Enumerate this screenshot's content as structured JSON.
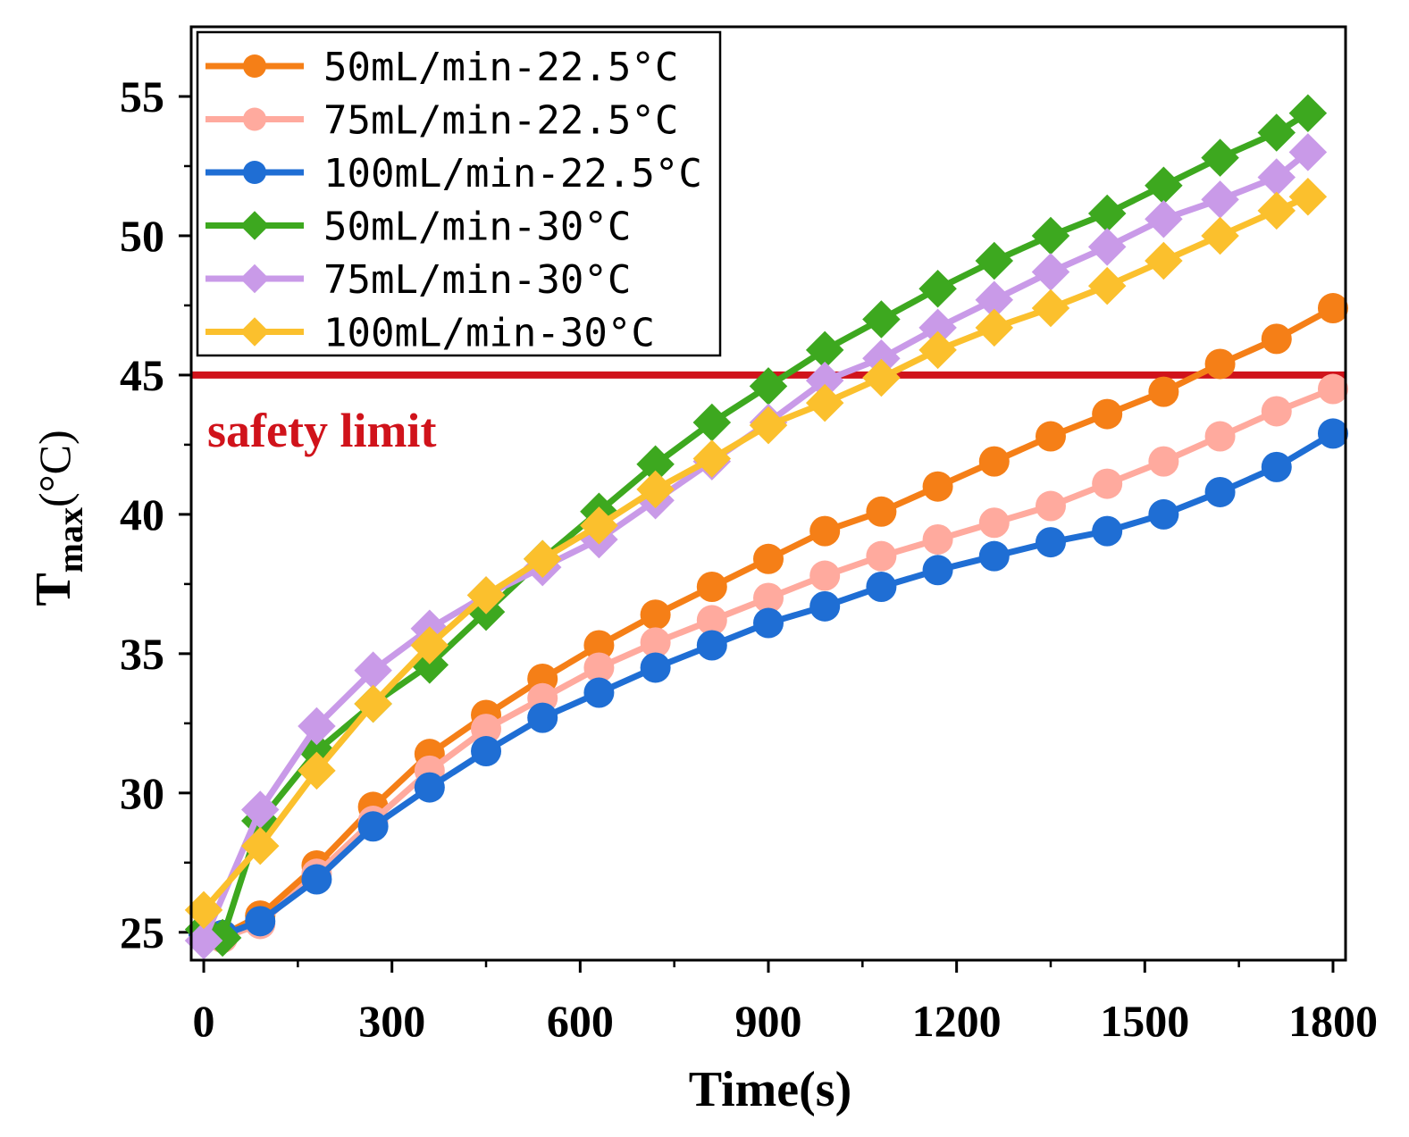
{
  "chart_data": {
    "type": "line",
    "title": "",
    "xlabel": "Time(s)",
    "ylabel": "T",
    "ylabel_sub": "max",
    "ylabel_unit": "(°C)",
    "xlim": [
      -20,
      1820
    ],
    "ylim": [
      24,
      57.5
    ],
    "xticks": [
      0,
      300,
      600,
      900,
      1200,
      1500,
      1800
    ],
    "yticks": [
      25,
      30,
      35,
      40,
      45,
      50,
      55
    ],
    "xtick_labels": [
      "0",
      "300",
      "600",
      "900",
      "1200",
      "1500",
      "1800"
    ],
    "ytick_labels": [
      "25",
      "30",
      "35",
      "40",
      "45",
      "50",
      "55"
    ],
    "grid": false,
    "legend_position": "top-left",
    "safety_limit": {
      "value": 45,
      "label": "safety limit",
      "color": "#d0131b"
    },
    "series": [
      {
        "name": "50mL/min-22.5°C",
        "color": "#f57f17",
        "marker": "circle",
        "x": [
          0,
          30,
          90,
          180,
          270,
          360,
          450,
          540,
          630,
          720,
          810,
          900,
          990,
          1080,
          1170,
          1260,
          1350,
          1440,
          1530,
          1620,
          1710,
          1800
        ],
        "values": [
          25.0,
          24.9,
          25.6,
          27.4,
          29.5,
          31.4,
          32.8,
          34.1,
          35.3,
          36.4,
          37.4,
          38.4,
          39.4,
          40.1,
          41.0,
          41.9,
          42.8,
          43.6,
          44.4,
          45.4,
          46.3,
          47.4
        ]
      },
      {
        "name": "75mL/min-22.5°C",
        "color": "#ffaa9e",
        "marker": "circle",
        "x": [
          0,
          30,
          90,
          180,
          270,
          360,
          450,
          540,
          630,
          720,
          810,
          900,
          990,
          1080,
          1170,
          1260,
          1350,
          1440,
          1530,
          1620,
          1710,
          1800
        ],
        "values": [
          25.0,
          24.8,
          25.3,
          27.1,
          29.0,
          30.8,
          32.3,
          33.4,
          34.5,
          35.4,
          36.2,
          37.0,
          37.8,
          38.5,
          39.1,
          39.7,
          40.3,
          41.1,
          41.9,
          42.8,
          43.7,
          44.5
        ]
      },
      {
        "name": "100mL/min-22.5°C",
        "color": "#1f6ed4",
        "marker": "circle",
        "x": [
          0,
          30,
          90,
          180,
          270,
          360,
          450,
          540,
          630,
          720,
          810,
          900,
          990,
          1080,
          1170,
          1260,
          1350,
          1440,
          1530,
          1620,
          1710,
          1800
        ],
        "values": [
          24.9,
          24.9,
          25.4,
          26.9,
          28.8,
          30.2,
          31.5,
          32.7,
          33.6,
          34.5,
          35.3,
          36.1,
          36.7,
          37.4,
          38.0,
          38.5,
          39.0,
          39.4,
          40.0,
          40.8,
          41.7,
          42.9
        ]
      },
      {
        "name": "50mL/min-30°C",
        "color": "#3da81f",
        "marker": "diamond",
        "x": [
          0,
          30,
          90,
          180,
          270,
          360,
          450,
          540,
          630,
          720,
          810,
          900,
          990,
          1080,
          1170,
          1260,
          1350,
          1440,
          1530,
          1620,
          1710,
          1760
        ],
        "values": [
          25.1,
          24.8,
          29.0,
          31.5,
          33.2,
          34.6,
          36.5,
          38.4,
          40.1,
          41.8,
          43.3,
          44.6,
          45.9,
          47.0,
          48.1,
          49.1,
          50.0,
          50.8,
          51.8,
          52.8,
          53.7,
          54.4
        ]
      },
      {
        "name": "75mL/min-30°C",
        "color": "#c99ae8",
        "marker": "diamond",
        "x": [
          0,
          90,
          180,
          270,
          360,
          450,
          540,
          630,
          720,
          810,
          900,
          990,
          1080,
          1170,
          1260,
          1350,
          1440,
          1530,
          1620,
          1710,
          1760
        ],
        "values": [
          24.7,
          29.4,
          32.4,
          34.4,
          35.9,
          37.1,
          38.1,
          39.1,
          40.5,
          41.9,
          43.3,
          44.8,
          45.6,
          46.7,
          47.7,
          48.7,
          49.6,
          50.6,
          51.3,
          52.1,
          53.0
        ]
      },
      {
        "name": "100mL/min-30°C",
        "color": "#fbc02d",
        "marker": "diamond",
        "x": [
          0,
          90,
          180,
          270,
          360,
          450,
          540,
          630,
          720,
          810,
          900,
          990,
          1080,
          1170,
          1260,
          1350,
          1440,
          1530,
          1620,
          1710,
          1760
        ],
        "values": [
          25.8,
          28.1,
          30.8,
          33.2,
          35.3,
          37.1,
          38.4,
          39.6,
          40.9,
          42.0,
          43.2,
          44.0,
          44.9,
          45.9,
          46.7,
          47.4,
          48.2,
          49.1,
          50.0,
          50.9,
          51.4
        ]
      }
    ]
  }
}
